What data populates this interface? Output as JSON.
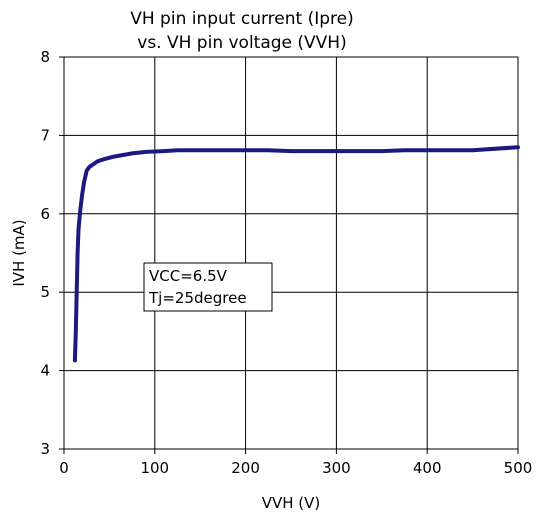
{
  "chart_data": {
    "type": "line",
    "title_lines": [
      "VH pin input current (Ipre)",
      "vs. VH pin voltage (VVH)"
    ],
    "xlabel": "VVH (V)",
    "ylabel": "IVH (mA)",
    "xlim": [
      0,
      500
    ],
    "ylim": [
      3,
      8
    ],
    "xticks": [
      0,
      100,
      200,
      300,
      400,
      500
    ],
    "yticks": [
      3,
      4,
      5,
      6,
      7,
      8
    ],
    "grid": true,
    "line_color": "#1a1a80",
    "annotation": [
      "VCC=6.5V",
      "Tj=25degree"
    ],
    "series": [
      {
        "x": [
          12,
          13,
          14,
          15,
          16,
          18,
          20,
          22,
          25,
          28,
          32,
          37,
          45,
          55,
          65,
          75,
          90,
          110,
          125,
          150,
          200,
          225,
          250,
          300,
          350,
          375,
          400,
          450,
          500
        ],
        "y": [
          4.13,
          4.5,
          5.0,
          5.5,
          5.8,
          6.05,
          6.25,
          6.4,
          6.55,
          6.6,
          6.63,
          6.67,
          6.7,
          6.73,
          6.75,
          6.77,
          6.79,
          6.8,
          6.81,
          6.81,
          6.81,
          6.81,
          6.8,
          6.8,
          6.8,
          6.81,
          6.81,
          6.81,
          6.85
        ]
      }
    ]
  }
}
